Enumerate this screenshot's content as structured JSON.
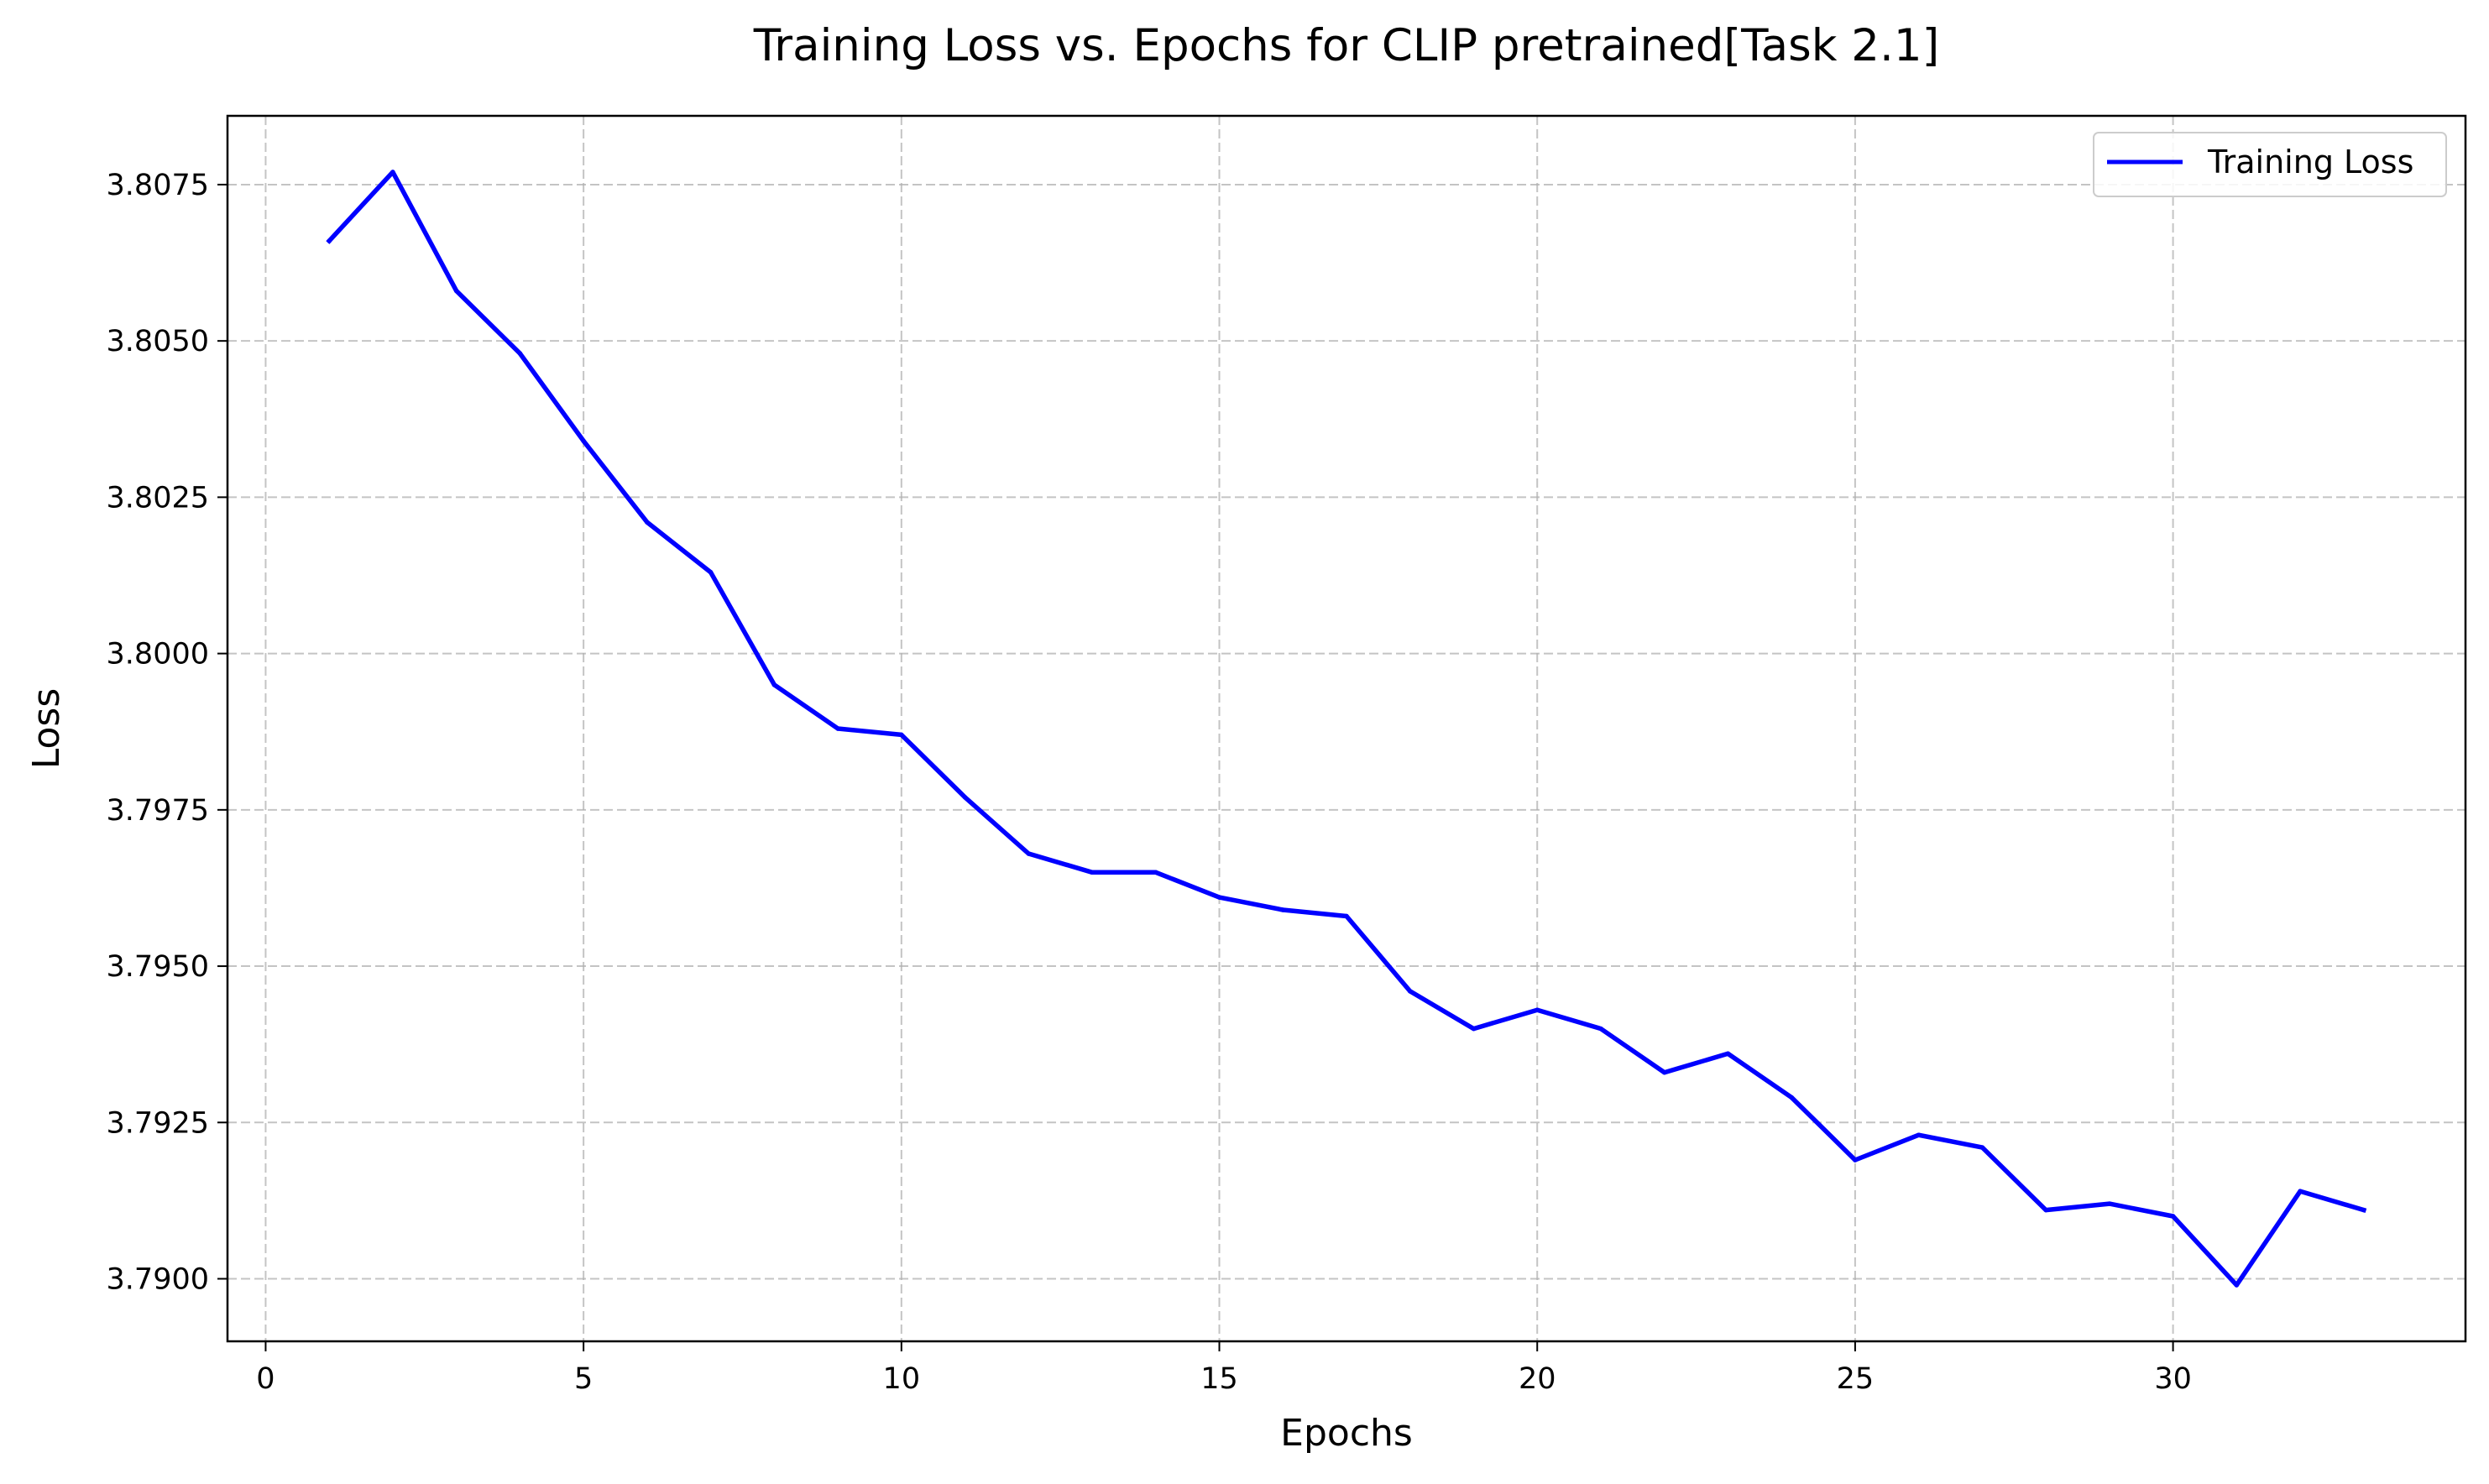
{
  "chart_data": {
    "type": "line",
    "title": "Training Loss vs. Epochs for CLIP pretrained[Task 2.1]",
    "xlabel": "Epochs",
    "ylabel": "Loss",
    "xlim": [
      -0.6,
      34.6
    ],
    "ylim": [
      3.789,
      3.8086
    ],
    "x_ticks": [
      0,
      5,
      10,
      15,
      20,
      25,
      30
    ],
    "x_tick_labels": [
      "0",
      "5",
      "10",
      "15",
      "20",
      "25",
      "30"
    ],
    "y_ticks": [
      3.79,
      3.7925,
      3.795,
      3.7975,
      3.8,
      3.8025,
      3.805,
      3.8075
    ],
    "y_tick_labels": [
      "3.7900",
      "3.7925",
      "3.7950",
      "3.7975",
      "3.8000",
      "3.8025",
      "3.8050",
      "3.8075"
    ],
    "grid": true,
    "legend_position": "upper right",
    "series": [
      {
        "name": "Training Loss",
        "color": "#0000ff",
        "x": [
          1,
          2,
          3,
          4,
          5,
          6,
          7,
          8,
          9,
          10,
          11,
          12,
          13,
          14,
          15,
          16,
          17,
          18,
          19,
          20,
          21,
          22,
          23,
          24,
          25,
          26,
          27,
          28,
          29,
          30,
          31,
          32,
          33
        ],
        "y": [
          3.8066,
          3.8077,
          3.8058,
          3.8048,
          3.8034,
          3.8021,
          3.8013,
          3.7995,
          3.7988,
          3.7987,
          3.7977,
          3.7968,
          3.7965,
          3.7965,
          3.7961,
          3.7959,
          3.7958,
          3.7946,
          3.794,
          3.7943,
          3.794,
          3.7933,
          3.7936,
          3.7929,
          3.7919,
          3.7923,
          3.7921,
          3.7911,
          3.7912,
          3.791,
          3.7899,
          3.7914,
          3.7911
        ]
      }
    ]
  }
}
